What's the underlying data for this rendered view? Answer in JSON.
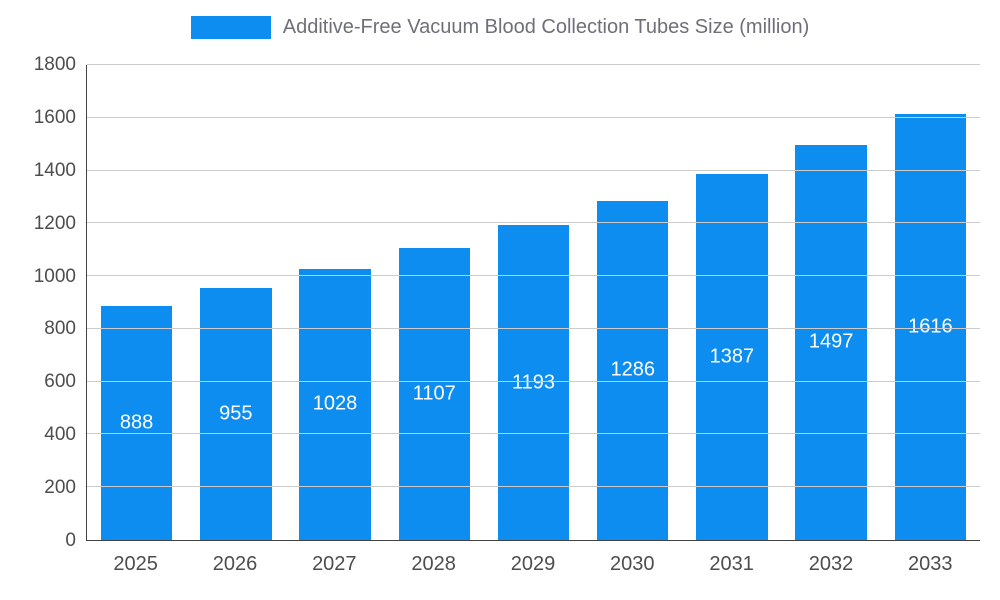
{
  "legend": {
    "label": "Additive-Free Vacuum Blood Collection Tubes Size (million)"
  },
  "chart_data": {
    "type": "bar",
    "title": "Additive-Free Vacuum Blood Collection Tubes Size (million)",
    "categories": [
      "2025",
      "2026",
      "2027",
      "2028",
      "2029",
      "2030",
      "2031",
      "2032",
      "2033"
    ],
    "values": [
      888,
      955,
      1028,
      1107,
      1193,
      1286,
      1387,
      1497,
      1616
    ],
    "xlabel": "",
    "ylabel": "",
    "ylim": [
      0,
      1800
    ],
    "ytick_step": 200,
    "grid": true,
    "legend_position": "top",
    "bar_color": "#0d8df0",
    "value_label_color": "#ffffff",
    "axis_label_color": "#4d4d4d",
    "gridline_color": "#cccccc"
  }
}
